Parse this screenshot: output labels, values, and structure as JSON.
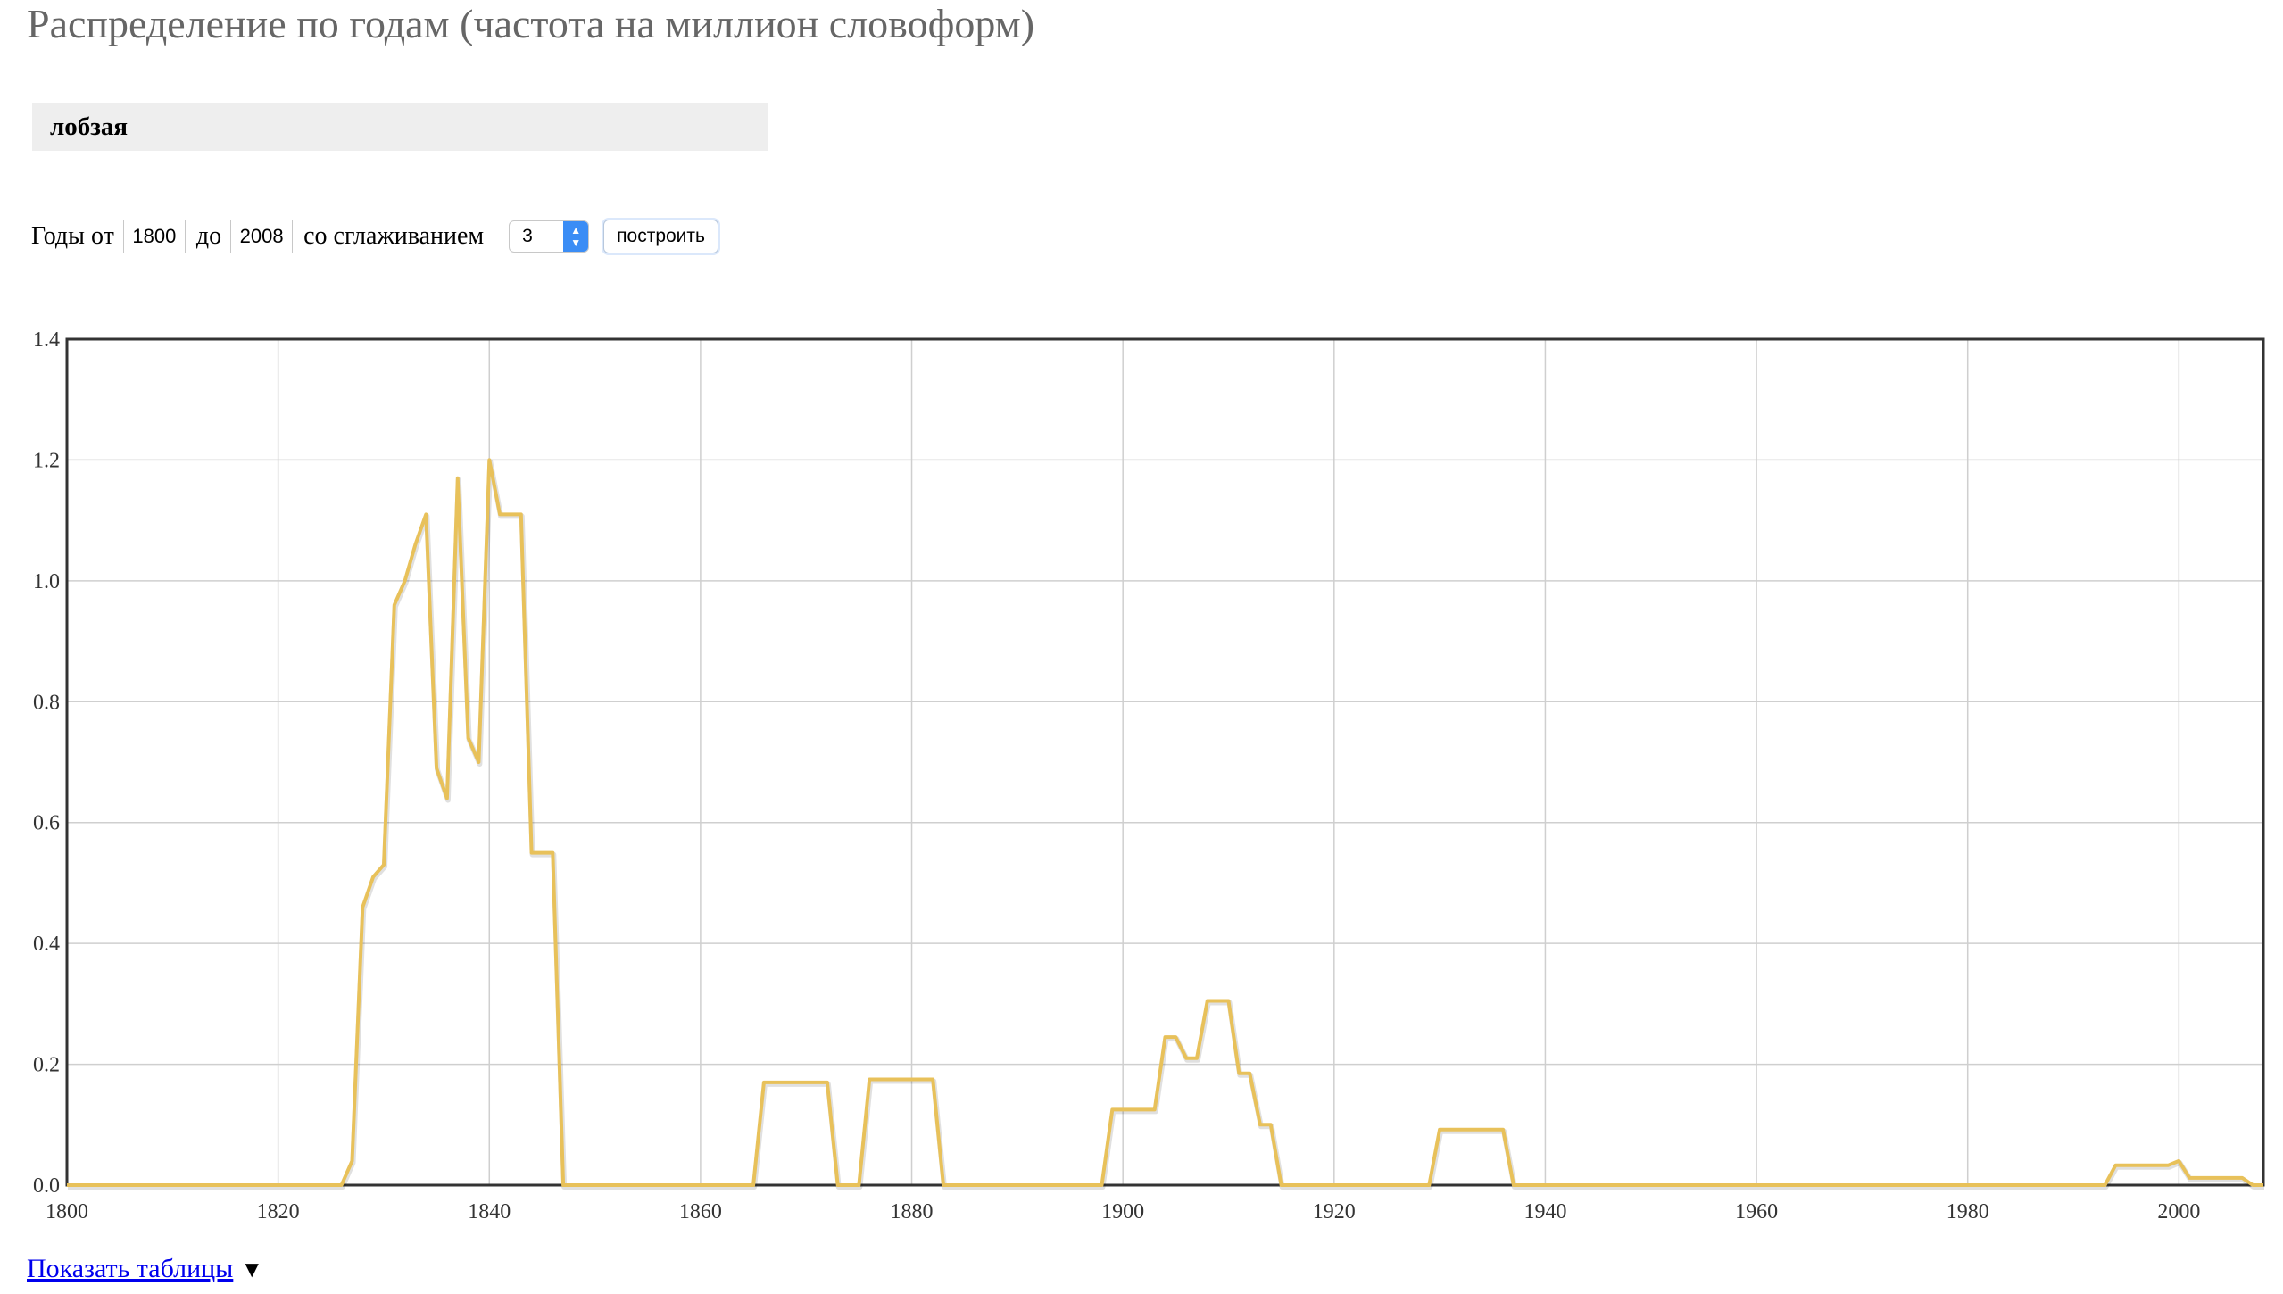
{
  "page": {
    "title": "Распределение по годам (частота на миллион словоформ)"
  },
  "query": {
    "word": "лобзая"
  },
  "controls": {
    "from_label": "Годы от",
    "from_value": "1800",
    "to_label": "до",
    "to_value": "2008",
    "smoothing_label": "со сглаживанием",
    "smoothing_value": "3",
    "build_label": "построить"
  },
  "footer": {
    "show_tables_label": "Показать таблицы",
    "toggle_icon": "triangle-down-icon"
  },
  "chart_data": {
    "type": "line",
    "xlim": [
      1800,
      2008
    ],
    "ylim": [
      0,
      1.4
    ],
    "x_ticks": [
      1800,
      1820,
      1840,
      1860,
      1880,
      1900,
      1920,
      1940,
      1960,
      1980,
      2000
    ],
    "y_ticks": [
      0.0,
      0.2,
      0.4,
      0.6,
      0.8,
      1.0,
      1.2,
      1.4
    ],
    "y_tick_labels": [
      "0.0",
      "0.2",
      "0.4",
      "0.6",
      "0.8",
      "1.0",
      "1.2",
      "1.4"
    ],
    "grid": true,
    "line_color": "#e8c15a",
    "series": [
      {
        "points": [
          [
            1800,
            0
          ],
          [
            1826,
            0
          ],
          [
            1827,
            0.04
          ],
          [
            1828,
            0.46
          ],
          [
            1829,
            0.51
          ],
          [
            1830,
            0.53
          ],
          [
            1831,
            0.96
          ],
          [
            1832,
            1.0
          ],
          [
            1833,
            1.06
          ],
          [
            1834,
            1.11
          ],
          [
            1835,
            0.69
          ],
          [
            1836,
            0.64
          ],
          [
            1837,
            1.17
          ],
          [
            1838,
            0.74
          ],
          [
            1839,
            0.7
          ],
          [
            1840,
            1.2
          ],
          [
            1841,
            1.11
          ],
          [
            1843,
            1.11
          ],
          [
            1844,
            0.55
          ],
          [
            1846,
            0.55
          ],
          [
            1847,
            0
          ],
          [
            1865,
            0
          ],
          [
            1866,
            0.17
          ],
          [
            1872,
            0.17
          ],
          [
            1873,
            0
          ],
          [
            1875,
            0
          ],
          [
            1876,
            0.175
          ],
          [
            1882,
            0.175
          ],
          [
            1883,
            0
          ],
          [
            1898,
            0
          ],
          [
            1899,
            0.125
          ],
          [
            1903,
            0.125
          ],
          [
            1904,
            0.245
          ],
          [
            1905,
            0.245
          ],
          [
            1906,
            0.21
          ],
          [
            1907,
            0.21
          ],
          [
            1908,
            0.305
          ],
          [
            1910,
            0.305
          ],
          [
            1911,
            0.185
          ],
          [
            1912,
            0.185
          ],
          [
            1913,
            0.1
          ],
          [
            1914,
            0.1
          ],
          [
            1915,
            0
          ],
          [
            1929,
            0
          ],
          [
            1930,
            0.092
          ],
          [
            1936,
            0.092
          ],
          [
            1937,
            0
          ],
          [
            1993,
            0
          ],
          [
            1994,
            0.033
          ],
          [
            1999,
            0.033
          ],
          [
            2000,
            0.04
          ],
          [
            2001,
            0.012
          ],
          [
            2006,
            0.012
          ],
          [
            2007,
            0
          ],
          [
            2008,
            0
          ]
        ]
      }
    ]
  }
}
